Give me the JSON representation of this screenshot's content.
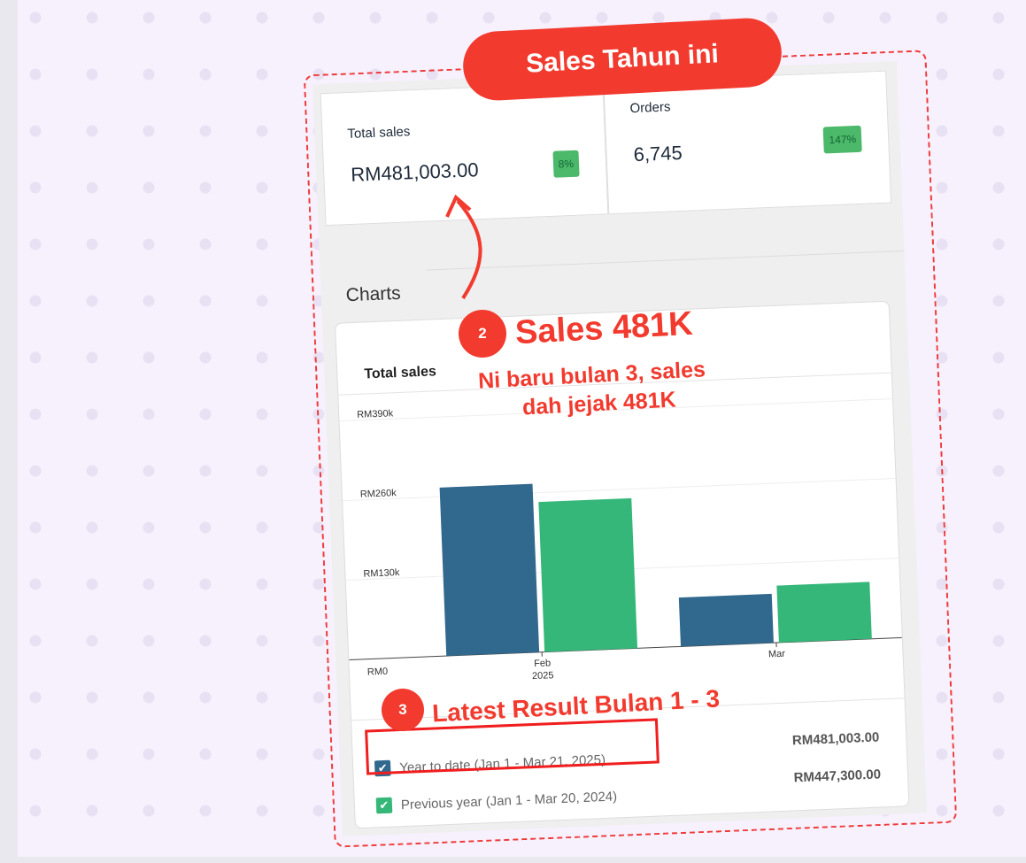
{
  "banner": {
    "title": "Sales Tahun ini"
  },
  "stats": [
    {
      "label": "Total sales",
      "value": "RM481,003.00",
      "badge": "8%"
    },
    {
      "label": "Orders",
      "value": "6,745",
      "badge": "147%"
    }
  ],
  "charts": {
    "heading": "Charts",
    "card_title": "Total sales"
  },
  "chart_data": {
    "type": "bar",
    "title": "Total sales",
    "categories": [
      "Feb 2025",
      "Mar"
    ],
    "category_labels": [
      [
        "Feb",
        "2025"
      ],
      [
        "Mar"
      ]
    ],
    "yticks": [
      "RM0",
      "RM130k",
      "RM260k",
      "RM390k"
    ],
    "ylim": [
      0,
      390000
    ],
    "grid": true,
    "series": [
      {
        "name": "Year to date (Jan 1 - Mar 21, 2025)",
        "color": "#31688e",
        "values": [
          275000,
          80000
        ]
      },
      {
        "name": "Previous year (Jan 1 - Mar 20, 2024)",
        "color": "#35b779",
        "values": [
          245000,
          93000
        ]
      }
    ]
  },
  "legend": [
    {
      "label": "Year to date (Jan 1 - Mar 21, 2025)",
      "total": "RM481,003.00",
      "color": "#31688e"
    },
    {
      "label": "Previous year (Jan 1 - Mar 20, 2024)",
      "total": "RM447,300.00",
      "color": "#35b779"
    }
  ],
  "annotations": {
    "step2_number": "2",
    "step2_title": "Sales 481K",
    "step2_line1": "Ni baru bulan 3, sales",
    "step2_line2": "dah jejak 481K",
    "step3_number": "3",
    "step3_title": "Latest Result Bulan 1 - 3"
  }
}
